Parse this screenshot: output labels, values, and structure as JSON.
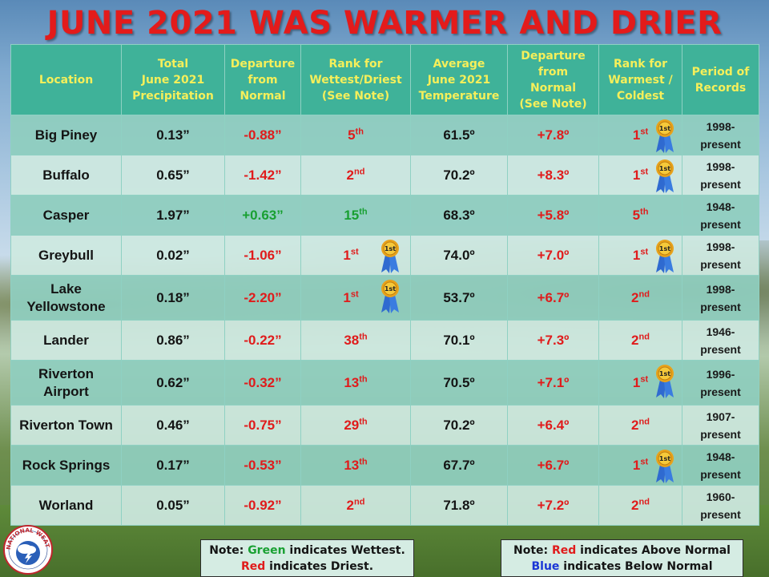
{
  "title": "JUNE 2021 WAS WARMER AND DRIER",
  "headers": {
    "location": "Location",
    "precip": [
      "Total",
      "June 2021",
      "Precipitation"
    ],
    "precip_dep": [
      "Departure",
      "from",
      "Normal"
    ],
    "precip_rank": [
      "Rank for",
      "Wettest/Driest",
      "(See Note)"
    ],
    "temp": [
      "Average",
      "June 2021",
      "Temperature"
    ],
    "temp_dep": [
      "Departure",
      "from",
      "Normal",
      "(See Note)"
    ],
    "temp_rank": [
      "Rank for",
      "Warmest /",
      "Coldest"
    ],
    "period": [
      "Period of",
      "Records"
    ]
  },
  "ribbon_label": "1st",
  "rows": [
    {
      "loc": [
        "Big Piney"
      ],
      "precip": "0.13”",
      "pdep": "-0.88”",
      "pdep_color": "red",
      "prank_num": "5",
      "prank_sfx": "th",
      "prank_color": "red",
      "prank_ribbon": false,
      "temp": "61.5º",
      "tdep": "+7.8º",
      "trank_num": "1",
      "trank_sfx": "st",
      "trank_ribbon": true,
      "period": [
        "1998-",
        "present"
      ]
    },
    {
      "loc": [
        "Buffalo"
      ],
      "precip": "0.65”",
      "pdep": "-1.42”",
      "pdep_color": "red",
      "prank_num": "2",
      "prank_sfx": "nd",
      "prank_color": "red",
      "prank_ribbon": false,
      "temp": "70.2º",
      "tdep": "+8.3º",
      "trank_num": "1",
      "trank_sfx": "st",
      "trank_ribbon": true,
      "period": [
        "1998-",
        "present"
      ]
    },
    {
      "loc": [
        "Casper"
      ],
      "precip": "1.97”",
      "pdep": "+0.63”",
      "pdep_color": "green",
      "prank_num": "15",
      "prank_sfx": "th",
      "prank_color": "green",
      "prank_ribbon": false,
      "temp": "68.3º",
      "tdep": "+5.8º",
      "trank_num": "5",
      "trank_sfx": "th",
      "trank_ribbon": false,
      "period": [
        "1948-",
        "present"
      ]
    },
    {
      "loc": [
        "Greybull"
      ],
      "precip": "0.02”",
      "pdep": "-1.06”",
      "pdep_color": "red",
      "prank_num": "1",
      "prank_sfx": "st",
      "prank_color": "red",
      "prank_ribbon": true,
      "temp": "74.0º",
      "tdep": "+7.0º",
      "trank_num": "1",
      "trank_sfx": "st",
      "trank_ribbon": true,
      "period": [
        "1998-",
        "present"
      ]
    },
    {
      "loc": [
        "Lake",
        "Yellowstone"
      ],
      "precip": "0.18”",
      "pdep": "-2.20”",
      "pdep_color": "red",
      "prank_num": "1",
      "prank_sfx": "st",
      "prank_color": "red",
      "prank_ribbon": true,
      "temp": "53.7º",
      "tdep": "+6.7º",
      "trank_num": "2",
      "trank_sfx": "nd",
      "trank_ribbon": false,
      "period": [
        "1998-",
        "present"
      ]
    },
    {
      "loc": [
        "Lander"
      ],
      "precip": "0.86”",
      "pdep": "-0.22”",
      "pdep_color": "red",
      "prank_num": "38",
      "prank_sfx": "th",
      "prank_color": "red",
      "prank_ribbon": false,
      "temp": "70.1º",
      "tdep": "+7.3º",
      "trank_num": "2",
      "trank_sfx": "nd",
      "trank_ribbon": false,
      "period": [
        "1946-",
        "present"
      ]
    },
    {
      "loc": [
        "Riverton",
        "Airport"
      ],
      "precip": "0.62”",
      "pdep": "-0.32”",
      "pdep_color": "red",
      "prank_num": "13",
      "prank_sfx": "th",
      "prank_color": "red",
      "prank_ribbon": false,
      "temp": "70.5º",
      "tdep": "+7.1º",
      "trank_num": "1",
      "trank_sfx": "st",
      "trank_ribbon": true,
      "period": [
        "1996-",
        "present"
      ]
    },
    {
      "loc": [
        "Riverton Town"
      ],
      "precip": "0.46”",
      "pdep": "-0.75”",
      "pdep_color": "red",
      "prank_num": "29",
      "prank_sfx": "th",
      "prank_color": "red",
      "prank_ribbon": false,
      "temp": "70.2º",
      "tdep": "+6.4º",
      "trank_num": "2",
      "trank_sfx": "nd",
      "trank_ribbon": false,
      "period": [
        "1907-",
        "present"
      ]
    },
    {
      "loc": [
        "Rock Springs"
      ],
      "precip": "0.17”",
      "pdep": "-0.53”",
      "pdep_color": "red",
      "prank_num": "13",
      "prank_sfx": "th",
      "prank_color": "red",
      "prank_ribbon": false,
      "temp": "67.7º",
      "tdep": "+6.7º",
      "trank_num": "1",
      "trank_sfx": "st",
      "trank_ribbon": true,
      "period": [
        "1948-",
        "present"
      ]
    },
    {
      "loc": [
        "Worland"
      ],
      "precip": "0.05”",
      "pdep": "-0.92”",
      "pdep_color": "red",
      "prank_num": "2",
      "prank_sfx": "nd",
      "prank_color": "red",
      "prank_ribbon": false,
      "temp": "71.8º",
      "tdep": "+7.2º",
      "trank_num": "2",
      "trank_sfx": "nd",
      "trank_ribbon": false,
      "period": [
        "1960-",
        "present"
      ]
    }
  ],
  "note_left": {
    "prefix": "Note: ",
    "green_word": "Green",
    "mid": " indicates Wettest.",
    "red_word": "Red",
    "end": " indicates Driest."
  },
  "note_right": {
    "prefix": "Note: ",
    "red_word": "Red",
    "mid": " indicates Above Normal",
    "blue_word": "Blue",
    "end": " indicates Below Normal"
  },
  "logo_text": "NATIONAL WEATHER SERVICE",
  "colors": {
    "red": "#e01b1b",
    "green": "#19a032",
    "blue": "#1a36d6",
    "header_bg": "#3fb299",
    "header_text": "#f5ef5a",
    "title": "#e31b1b"
  }
}
